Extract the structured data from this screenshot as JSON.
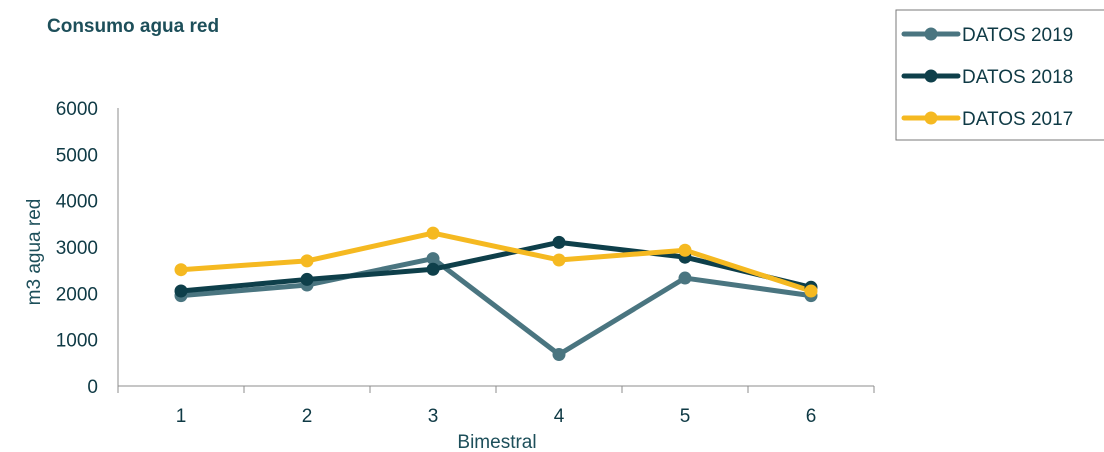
{
  "chart_data": {
    "type": "line",
    "title": "Consumo agua red",
    "xlabel": "Bimestral",
    "ylabel": "m3 agua red",
    "categories": [
      "1",
      "2",
      "3",
      "4",
      "5",
      "6"
    ],
    "ylim": [
      0,
      6000
    ],
    "yticks": [
      "0",
      "1000",
      "2000",
      "3000",
      "4000",
      "5000",
      "6000"
    ],
    "grid": false,
    "legend_position": "top-right",
    "series": [
      {
        "name": "DATOS 2019",
        "color": "#4a7580",
        "values": [
          1950,
          2180,
          2750,
          680,
          2330,
          1950
        ]
      },
      {
        "name": "DATOS 2018",
        "color": "#0e3f4a",
        "values": [
          2050,
          2300,
          2520,
          3100,
          2780,
          2130
        ]
      },
      {
        "name": "DATOS 2017",
        "color": "#f5b921",
        "values": [
          2510,
          2700,
          3300,
          2720,
          2930,
          2050
        ]
      }
    ]
  }
}
